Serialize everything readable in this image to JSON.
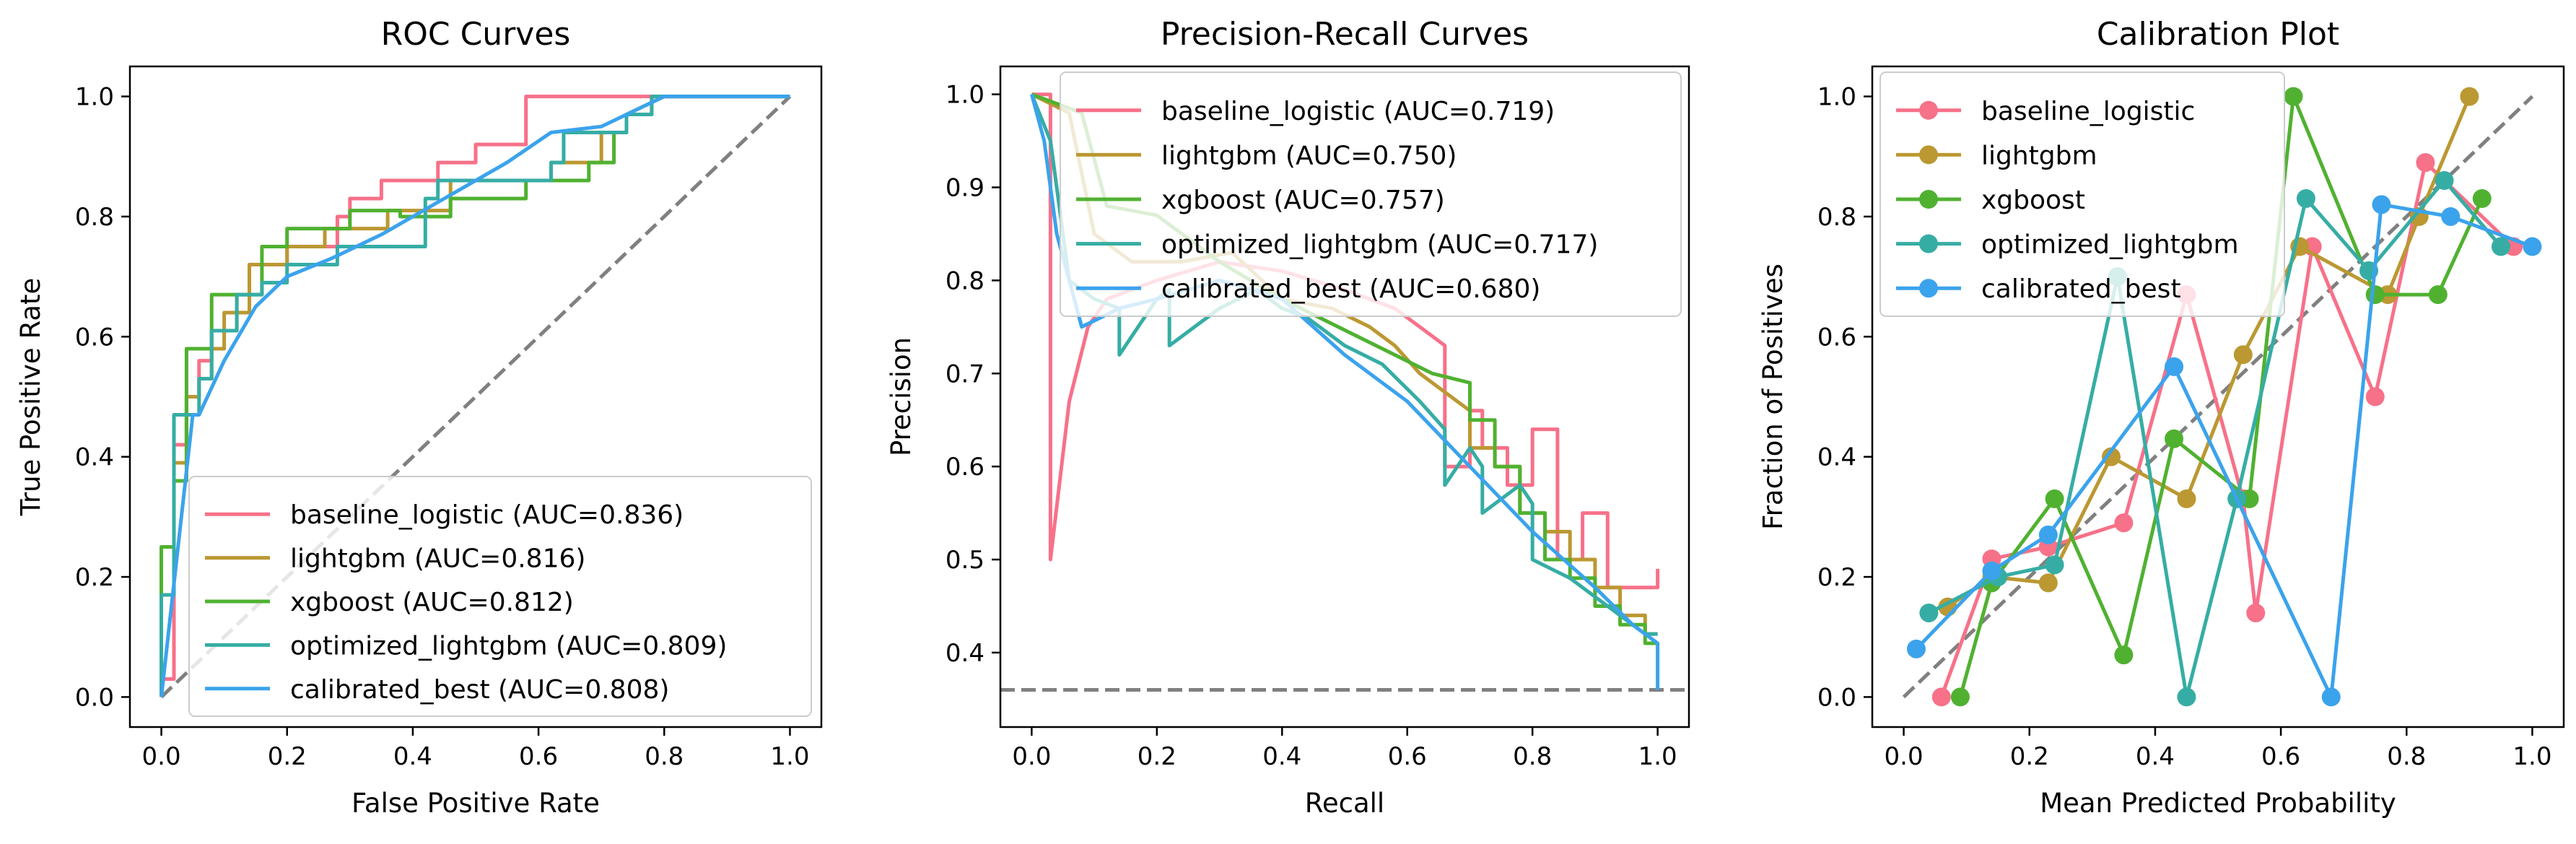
{
  "chart_data": [
    {
      "type": "line",
      "title": "ROC Curves",
      "xlabel": "False Positive Rate",
      "ylabel": "True Positive Rate",
      "xlim": [
        -0.05,
        1.05
      ],
      "ylim": [
        -0.05,
        1.05
      ],
      "xticks": [
        "0.0",
        "0.2",
        "0.4",
        "0.6",
        "0.8",
        "1.0"
      ],
      "yticks": [
        "0.0",
        "0.2",
        "0.4",
        "0.6",
        "0.8",
        "1.0"
      ],
      "grid": false,
      "legend_loc": "lower-right",
      "reference_line": {
        "x": [
          0,
          1
        ],
        "y": [
          0,
          1
        ],
        "color": "#808080",
        "style": "dashed"
      },
      "series": [
        {
          "name": "baseline_logistic (AUC=0.836)",
          "color": "#f77189",
          "x": [
            0,
            0,
            0.02,
            0.02,
            0.04,
            0.04,
            0.06,
            0.06,
            0.08,
            0.08,
            0.12,
            0.12,
            0.14,
            0.14,
            0.2,
            0.2,
            0.28,
            0.28,
            0.3,
            0.3,
            0.35,
            0.35,
            0.44,
            0.44,
            0.5,
            0.5,
            0.58,
            0.58,
            0.72,
            0.72,
            0.8,
            1.0
          ],
          "y": [
            0,
            0.03,
            0.03,
            0.42,
            0.42,
            0.5,
            0.5,
            0.56,
            0.56,
            0.61,
            0.61,
            0.67,
            0.67,
            0.72,
            0.72,
            0.75,
            0.75,
            0.8,
            0.8,
            0.83,
            0.83,
            0.86,
            0.86,
            0.89,
            0.89,
            0.92,
            0.92,
            1.0,
            1.0,
            1.0,
            1.0,
            1.0
          ]
        },
        {
          "name": "lightgbm (AUC=0.816)",
          "color": "#bb9832",
          "x": [
            0,
            0,
            0.02,
            0.02,
            0.04,
            0.04,
            0.06,
            0.06,
            0.08,
            0.08,
            0.1,
            0.1,
            0.14,
            0.14,
            0.2,
            0.2,
            0.26,
            0.26,
            0.36,
            0.36,
            0.46,
            0.46,
            0.62,
            0.62,
            0.7,
            0.7,
            0.74,
            0.74,
            0.8,
            1.0
          ],
          "y": [
            0,
            0.17,
            0.17,
            0.39,
            0.39,
            0.5,
            0.5,
            0.53,
            0.53,
            0.58,
            0.58,
            0.64,
            0.64,
            0.72,
            0.72,
            0.75,
            0.75,
            0.78,
            0.78,
            0.81,
            0.81,
            0.86,
            0.86,
            0.89,
            0.89,
            0.94,
            0.94,
            0.97,
            1.0,
            1.0
          ]
        },
        {
          "name": "xgboost (AUC=0.812)",
          "color": "#50b131",
          "x": [
            0,
            0,
            0.02,
            0.02,
            0.04,
            0.04,
            0.08,
            0.08,
            0.16,
            0.16,
            0.2,
            0.2,
            0.3,
            0.3,
            0.38,
            0.38,
            0.46,
            0.46,
            0.58,
            0.58,
            0.68,
            0.68,
            0.72,
            0.72,
            0.74,
            0.74,
            0.78,
            0.78,
            1.0
          ],
          "y": [
            0,
            0.25,
            0.25,
            0.36,
            0.36,
            0.58,
            0.58,
            0.67,
            0.67,
            0.75,
            0.75,
            0.78,
            0.78,
            0.81,
            0.81,
            0.8,
            0.8,
            0.83,
            0.83,
            0.86,
            0.86,
            0.89,
            0.89,
            0.94,
            0.94,
            0.97,
            0.97,
            1.0,
            1.0
          ]
        },
        {
          "name": "optimized_lightgbm (AUC=0.809)",
          "color": "#36ada4",
          "x": [
            0,
            0,
            0.02,
            0.02,
            0.06,
            0.06,
            0.08,
            0.08,
            0.12,
            0.12,
            0.16,
            0.16,
            0.2,
            0.2,
            0.28,
            0.28,
            0.42,
            0.42,
            0.44,
            0.44,
            0.62,
            0.62,
            0.64,
            0.64,
            0.74,
            0.74,
            0.78,
            0.78,
            1.0
          ],
          "y": [
            0,
            0.17,
            0.17,
            0.47,
            0.47,
            0.53,
            0.53,
            0.61,
            0.61,
            0.67,
            0.67,
            0.69,
            0.69,
            0.72,
            0.72,
            0.75,
            0.75,
            0.83,
            0.83,
            0.86,
            0.86,
            0.89,
            0.89,
            0.94,
            0.94,
            0.97,
            0.97,
            1.0,
            1.0
          ]
        },
        {
          "name": "calibrated_best (AUC=0.808)",
          "color": "#3ba3ec",
          "x": [
            0,
            0.05,
            0.06,
            0.1,
            0.15,
            0.2,
            0.27,
            0.35,
            0.45,
            0.55,
            0.62,
            0.7,
            0.8,
            1.0
          ],
          "y": [
            0,
            0.47,
            0.47,
            0.56,
            0.65,
            0.7,
            0.73,
            0.77,
            0.83,
            0.89,
            0.94,
            0.95,
            1.0,
            1.0
          ]
        }
      ]
    },
    {
      "type": "line",
      "title": "Precision-Recall Curves",
      "xlabel": "Recall",
      "ylabel": "Precision",
      "xlim": [
        -0.05,
        1.05
      ],
      "ylim": [
        0.32,
        1.03
      ],
      "xticks": [
        "0.0",
        "0.2",
        "0.4",
        "0.6",
        "0.8",
        "1.0"
      ],
      "yticks": [
        "0.4",
        "0.5",
        "0.6",
        "0.7",
        "0.8",
        "0.9",
        "1.0"
      ],
      "grid": false,
      "legend_loc": "upper-right",
      "reference_line": {
        "x": [
          -0.05,
          1.05
        ],
        "y": [
          0.36,
          0.36
        ],
        "color": "#808080",
        "style": "dashed"
      },
      "series": [
        {
          "name": "baseline_logistic (AUC=0.719)",
          "color": "#f77189",
          "x": [
            0,
            0.03,
            0.03,
            0.06,
            0.09,
            0.12,
            0.2,
            0.3,
            0.4,
            0.5,
            0.58,
            0.62,
            0.66,
            0.66,
            0.7,
            0.7,
            0.72,
            0.72,
            0.76,
            0.76,
            0.8,
            0.8,
            0.84,
            0.84,
            0.88,
            0.88,
            0.92,
            0.92,
            1.0,
            1.0
          ],
          "y": [
            1.0,
            1.0,
            0.5,
            0.67,
            0.75,
            0.78,
            0.8,
            0.82,
            0.81,
            0.79,
            0.77,
            0.75,
            0.73,
            0.6,
            0.6,
            0.66,
            0.66,
            0.62,
            0.62,
            0.58,
            0.58,
            0.64,
            0.64,
            0.5,
            0.5,
            0.55,
            0.55,
            0.47,
            0.47,
            0.49
          ]
        },
        {
          "name": "lightgbm (AUC=0.750)",
          "color": "#bb9832",
          "x": [
            0,
            0.06,
            0.1,
            0.16,
            0.24,
            0.32,
            0.4,
            0.48,
            0.54,
            0.58,
            0.62,
            0.66,
            0.7,
            0.7,
            0.74,
            0.74,
            0.78,
            0.78,
            0.82,
            0.82,
            0.86,
            0.86,
            0.9,
            0.9,
            0.94,
            0.94,
            0.98,
            0.98,
            1.0
          ],
          "y": [
            1.0,
            0.98,
            0.85,
            0.82,
            0.82,
            0.83,
            0.78,
            0.77,
            0.75,
            0.73,
            0.7,
            0.68,
            0.66,
            0.62,
            0.62,
            0.6,
            0.6,
            0.55,
            0.55,
            0.53,
            0.53,
            0.5,
            0.5,
            0.47,
            0.47,
            0.44,
            0.44,
            0.42,
            0.42
          ]
        },
        {
          "name": "xgboost (AUC=0.757)",
          "color": "#50b131",
          "x": [
            0,
            0.08,
            0.12,
            0.2,
            0.3,
            0.4,
            0.46,
            0.52,
            0.58,
            0.64,
            0.7,
            0.7,
            0.74,
            0.74,
            0.78,
            0.78,
            0.82,
            0.82,
            0.86,
            0.86,
            0.9,
            0.9,
            0.94,
            0.94,
            0.98,
            0.98,
            1.0
          ],
          "y": [
            1.0,
            0.98,
            0.88,
            0.87,
            0.82,
            0.78,
            0.76,
            0.74,
            0.72,
            0.7,
            0.69,
            0.65,
            0.65,
            0.6,
            0.6,
            0.55,
            0.55,
            0.5,
            0.5,
            0.48,
            0.48,
            0.45,
            0.45,
            0.43,
            0.43,
            0.41,
            0.41
          ]
        },
        {
          "name": "optimized_lightgbm (AUC=0.717)",
          "color": "#36ada4",
          "x": [
            0,
            0.03,
            0.06,
            0.1,
            0.14,
            0.14,
            0.2,
            0.22,
            0.22,
            0.3,
            0.36,
            0.4,
            0.44,
            0.5,
            0.56,
            0.62,
            0.66,
            0.66,
            0.7,
            0.72,
            0.72,
            0.78,
            0.8,
            0.8,
            0.86,
            0.9,
            0.94,
            0.98,
            1.0
          ],
          "y": [
            1.0,
            0.95,
            0.8,
            0.78,
            0.77,
            0.72,
            0.78,
            0.79,
            0.73,
            0.77,
            0.79,
            0.77,
            0.76,
            0.73,
            0.71,
            0.67,
            0.64,
            0.58,
            0.62,
            0.6,
            0.55,
            0.58,
            0.56,
            0.5,
            0.48,
            0.46,
            0.44,
            0.42,
            0.42
          ]
        },
        {
          "name": "calibrated_best (AUC=0.680)",
          "color": "#3ba3ec",
          "x": [
            0,
            0.02,
            0.04,
            0.06,
            0.08,
            0.14,
            0.2,
            0.3,
            0.4,
            0.5,
            0.6,
            0.7,
            0.8,
            0.9,
            0.96,
            1.0,
            1.0
          ],
          "y": [
            1.0,
            0.95,
            0.85,
            0.8,
            0.75,
            0.77,
            0.78,
            0.8,
            0.78,
            0.72,
            0.67,
            0.6,
            0.53,
            0.47,
            0.43,
            0.41,
            0.36
          ]
        }
      ]
    },
    {
      "type": "line",
      "title": "Calibration Plot",
      "xlabel": "Mean Predicted Probability",
      "ylabel": "Fraction of Positives",
      "xlim": [
        -0.05,
        1.05
      ],
      "ylim": [
        -0.05,
        1.05
      ],
      "xticks": [
        "0.0",
        "0.2",
        "0.4",
        "0.6",
        "0.8",
        "1.0"
      ],
      "yticks": [
        "0.0",
        "0.2",
        "0.4",
        "0.6",
        "0.8",
        "1.0"
      ],
      "grid": false,
      "markers": true,
      "legend_loc": "upper-left",
      "reference_line": {
        "x": [
          0,
          1
        ],
        "y": [
          0,
          1
        ],
        "color": "#808080",
        "style": "dashed"
      },
      "series": [
        {
          "name": "baseline_logistic",
          "color": "#f77189",
          "x": [
            0.06,
            0.14,
            0.23,
            0.35,
            0.45,
            0.54,
            0.56,
            0.65,
            0.75,
            0.83,
            0.97
          ],
          "y": [
            0.0,
            0.23,
            0.25,
            0.29,
            0.67,
            0.33,
            0.14,
            0.75,
            0.5,
            0.89,
            0.75
          ]
        },
        {
          "name": "lightgbm",
          "color": "#bb9832",
          "x": [
            0.07,
            0.14,
            0.23,
            0.33,
            0.45,
            0.54,
            0.63,
            0.77,
            0.82,
            0.9
          ],
          "y": [
            0.15,
            0.2,
            0.19,
            0.4,
            0.33,
            0.57,
            0.75,
            0.67,
            0.8,
            1.0
          ]
        },
        {
          "name": "xgboost",
          "color": "#50b131",
          "x": [
            0.09,
            0.14,
            0.24,
            0.35,
            0.43,
            0.55,
            0.62,
            0.75,
            0.85,
            0.92
          ],
          "y": [
            0.0,
            0.19,
            0.33,
            0.07,
            0.43,
            0.33,
            1.0,
            0.67,
            0.67,
            0.83
          ]
        },
        {
          "name": "optimized_lightgbm",
          "color": "#36ada4",
          "x": [
            0.04,
            0.15,
            0.24,
            0.34,
            0.45,
            0.53,
            0.64,
            0.74,
            0.86,
            0.95
          ],
          "y": [
            0.14,
            0.2,
            0.22,
            0.7,
            0.0,
            0.33,
            0.83,
            0.71,
            0.86,
            0.75
          ]
        },
        {
          "name": "calibrated_best",
          "color": "#3ba3ec",
          "x": [
            0.02,
            0.14,
            0.23,
            0.43,
            0.68,
            0.76,
            0.87,
            1.0
          ],
          "y": [
            0.08,
            0.21,
            0.27,
            0.55,
            0.0,
            0.82,
            0.8,
            0.75
          ]
        }
      ]
    }
  ]
}
